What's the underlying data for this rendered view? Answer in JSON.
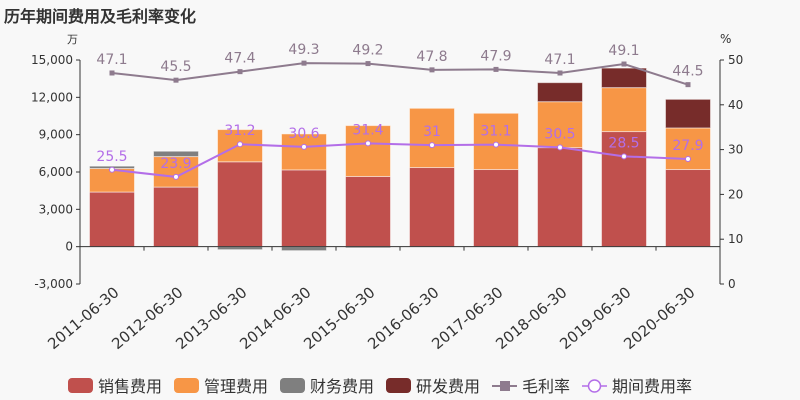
{
  "chart_data": {
    "type": "bar",
    "title": "历年期间费用及毛利率变化",
    "left_unit": "万",
    "right_unit": "%",
    "categories": [
      "2011-06-30",
      "2012-06-30",
      "2013-06-30",
      "2014-06-30",
      "2015-06-30",
      "2016-06-30",
      "2017-06-30",
      "2018-06-30",
      "2019-06-30",
      "2020-06-30"
    ],
    "left_axis": {
      "min": -3000,
      "max": 15000,
      "ticks": [
        -3000,
        0,
        3000,
        6000,
        9000,
        12000,
        15000
      ],
      "tick_labels": [
        "-3,000",
        "0",
        "3,000",
        "6,000",
        "9,000",
        "12,000",
        "15,000"
      ]
    },
    "right_axis": {
      "min": 0,
      "max": 50,
      "ticks": [
        0,
        10,
        20,
        30,
        40,
        50
      ],
      "tick_labels": [
        "0",
        "10",
        "20",
        "30",
        "40",
        "50"
      ]
    },
    "series": [
      {
        "name": "销售费用",
        "type": "bar",
        "color": "#c0504d",
        "values": [
          4390,
          4790,
          6820,
          6170,
          5640,
          6360,
          6200,
          7960,
          9250,
          6200
        ]
      },
      {
        "name": "管理费用",
        "type": "bar",
        "color": "#f79646",
        "values": [
          1890,
          2450,
          2590,
          2890,
          4090,
          4760,
          4520,
          3690,
          3530,
          3340
        ]
      },
      {
        "name": "财务费用",
        "type": "bar",
        "color": "#7f7f7f",
        "values": [
          190,
          430,
          -240,
          -320,
          -100,
          0,
          0,
          0,
          0,
          0
        ]
      },
      {
        "name": "研发费用",
        "type": "bar",
        "color": "#772c2a",
        "values": [
          0,
          0,
          0,
          0,
          0,
          0,
          0,
          1530,
          1570,
          2300
        ]
      },
      {
        "name": "毛利率",
        "type": "line",
        "axis": "right",
        "color": "#8e7b8e",
        "values": [
          47.1,
          45.5,
          47.4,
          49.3,
          49.2,
          47.8,
          47.9,
          47.1,
          49.1,
          44.5
        ],
        "labels": [
          "47.1",
          "45.5",
          "47.4",
          "49.3",
          "49.2",
          "47.8",
          "47.9",
          "47.1",
          "49.1",
          "44.5"
        ]
      },
      {
        "name": "期间费用率",
        "type": "line",
        "axis": "right",
        "color": "#b36ee8",
        "values": [
          25.5,
          23.9,
          31.2,
          30.6,
          31.4,
          31,
          31.1,
          30.5,
          28.5,
          27.9
        ],
        "labels": [
          "25.5",
          "23.9",
          "31.2",
          "30.6",
          "31.4",
          "31",
          "31.1",
          "30.5",
          "28.5",
          "27.9"
        ]
      }
    ],
    "legend_position": "bottom",
    "grid": false
  }
}
